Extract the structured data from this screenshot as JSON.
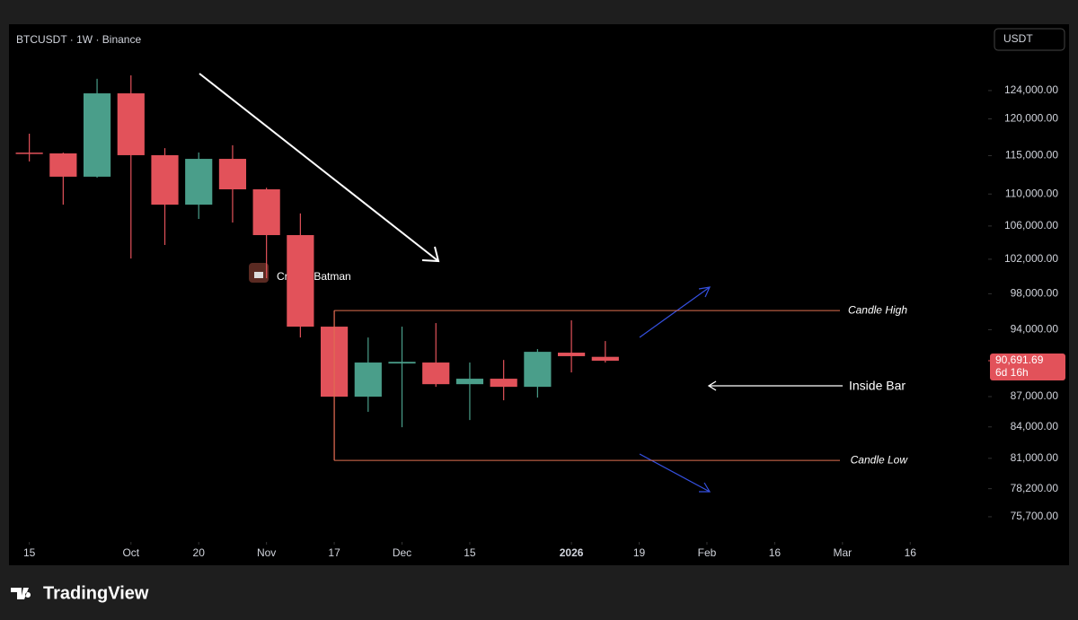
{
  "header": {
    "symbol": "BTCUSDT · 1W · Binance",
    "currency": "USDT"
  },
  "chart_data": {
    "type": "candlestick",
    "x": [
      0,
      1,
      2,
      3,
      4,
      5,
      6,
      7,
      8,
      9,
      10,
      11,
      12,
      13,
      14,
      15,
      16,
      17
    ],
    "open": [
      115400,
      115300,
      112230,
      123600,
      115060,
      108650,
      114570,
      110600,
      104890,
      94340,
      86990,
      90400,
      90500,
      88260,
      88820,
      87990,
      91540,
      91100
    ],
    "high": [
      117960,
      115400,
      125700,
      126200,
      116000,
      115420,
      116390,
      110800,
      107550,
      96110,
      93160,
      94340,
      94730,
      90500,
      90770,
      91920,
      95030,
      92780
    ],
    "low": [
      114230,
      108650,
      112100,
      102090,
      103700,
      106870,
      106430,
      99780,
      93160,
      80800,
      85480,
      83970,
      87990,
      84670,
      86630,
      86900,
      89470,
      90500
    ],
    "close": [
      115300,
      112230,
      123600,
      115060,
      108650,
      114570,
      110600,
      104890,
      94340,
      86990,
      90500,
      90570,
      88260,
      88820,
      87990,
      91630,
      91170,
      90691.69
    ],
    "up_color": "#4a9e8a",
    "down_color": "#e2525a",
    "log_scale": true,
    "ylim": [
      73600,
      133900
    ],
    "yticks": [
      {
        "value": 124000,
        "label": "124,000.00"
      },
      {
        "value": 120000,
        "label": "120,000.00"
      },
      {
        "value": 115000,
        "label": "115,000.00"
      },
      {
        "value": 110000,
        "label": "110,000.00"
      },
      {
        "value": 106000,
        "label": "106,000.00"
      },
      {
        "value": 102000,
        "label": "102,000.00"
      },
      {
        "value": 98000,
        "label": "98,000.00"
      },
      {
        "value": 94000,
        "label": "94,000.00"
      },
      {
        "value": 87000,
        "label": "87,000.00"
      },
      {
        "value": 84000,
        "label": "84,000.00"
      },
      {
        "value": 81000,
        "label": "81,000.00"
      },
      {
        "value": 78200,
        "label": "78,200.00"
      },
      {
        "value": 75700,
        "label": "75,700.00"
      }
    ],
    "xlim": [
      -0.6,
      28.3
    ],
    "xticks": [
      {
        "value": 0,
        "label": "15"
      },
      {
        "value": 3,
        "label": "Oct"
      },
      {
        "value": 5,
        "label": "20"
      },
      {
        "value": 7,
        "label": "Nov"
      },
      {
        "value": 9,
        "label": "17"
      },
      {
        "value": 11,
        "label": "Dec"
      },
      {
        "value": 13,
        "label": "15"
      },
      {
        "value": 16,
        "label": "2026",
        "bold": true
      },
      {
        "value": 18,
        "label": "19"
      },
      {
        "value": 20,
        "label": "Feb"
      },
      {
        "value": 22,
        "label": "16"
      },
      {
        "value": 24,
        "label": "Mar"
      },
      {
        "value": 26,
        "label": "16"
      }
    ],
    "last_price": {
      "value": 90691.69,
      "value_label": "90,691.69",
      "countdown": "6d 16h"
    },
    "annotations": [
      {
        "label": "Candle High",
        "value": 96110
      },
      {
        "label": "Candle Low",
        "value": 80800
      },
      {
        "label": "Inside Bar"
      }
    ],
    "watermark": "CryptosBatman"
  },
  "footer": {
    "brand": "TradingView"
  }
}
